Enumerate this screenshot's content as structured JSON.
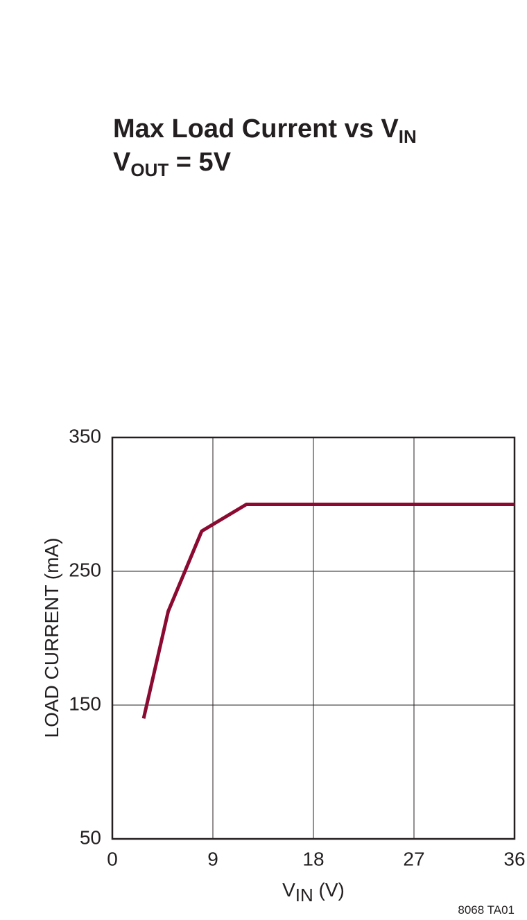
{
  "chart_data": {
    "type": "line",
    "title": {
      "text": "Max Load Current vs V",
      "sub": "IN"
    },
    "subtitle": {
      "text": "V",
      "sub": "OUT",
      "post": " = 5V"
    },
    "x_label": {
      "text": "V",
      "sub": "IN",
      "post": " (V)"
    },
    "y_label": "LOAD CURRENT (mA)",
    "annotation": "8068 TA01",
    "xlim": [
      0,
      36
    ],
    "xticks": [
      0,
      9,
      18,
      27,
      36
    ],
    "ylim": [
      50,
      350
    ],
    "yticks": [
      50,
      150,
      250,
      350
    ],
    "grid": true,
    "series": [
      {
        "color": "#8b0a32",
        "x": [
          2.8,
          5,
          8,
          12,
          36
        ],
        "values": [
          140,
          220,
          280,
          300,
          300
        ]
      }
    ]
  }
}
